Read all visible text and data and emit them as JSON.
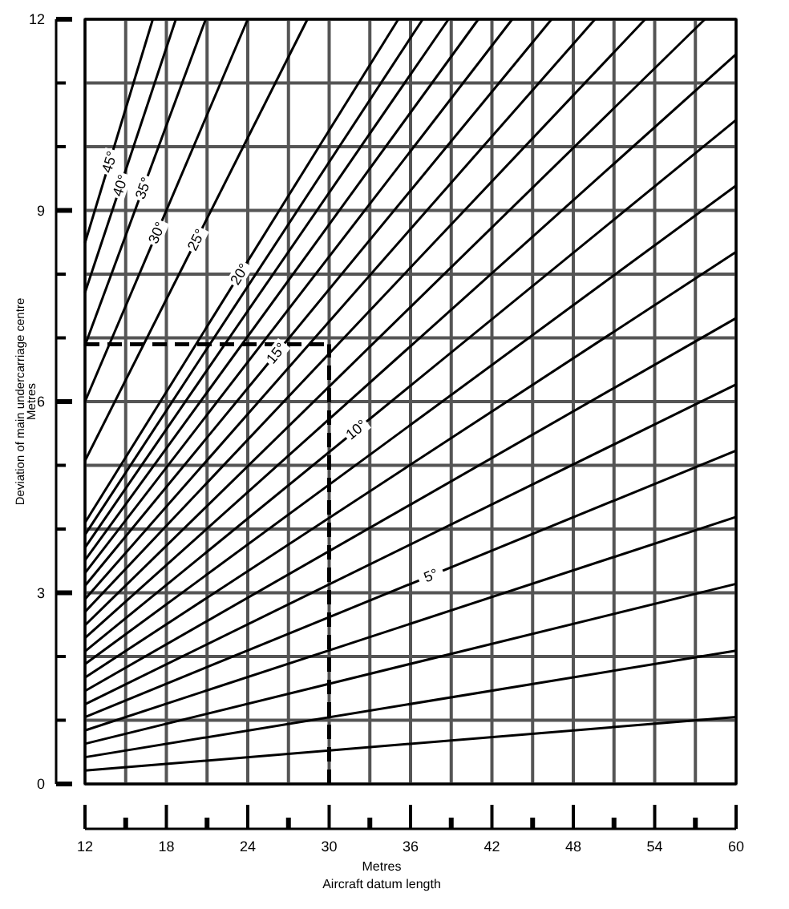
{
  "chart_data": {
    "type": "line",
    "xlabel": "Metres\nAircraft datum length",
    "ylabel": "Deviation of main undercarriage centre\nMetres",
    "xlim": [
      12,
      60
    ],
    "ylim": [
      0,
      12
    ],
    "xticks": [
      12,
      {
        "value": 15,
        "label": null
      },
      18,
      {
        "value": 21,
        "label": null
      },
      24,
      {
        "value": 27,
        "label": null
      },
      30,
      {
        "value": 33,
        "label": null
      },
      36,
      {
        "value": 39,
        "label": null
      },
      42,
      {
        "value": 45,
        "label": null
      },
      48,
      {
        "value": 51,
        "label": null
      },
      54,
      {
        "value": 57,
        "label": null
      },
      60
    ],
    "yticks": [
      0,
      {
        "value": 1,
        "label": null
      },
      {
        "value": 2,
        "label": null
      },
      3,
      {
        "value": 4,
        "label": null
      },
      {
        "value": 5,
        "label": null
      },
      6,
      {
        "value": 7,
        "label": null
      },
      {
        "value": 8,
        "label": null
      },
      9,
      {
        "value": 10,
        "label": null
      },
      {
        "value": 11,
        "label": null
      },
      12
    ],
    "grid": true,
    "marker": "none",
    "line_style": "solid",
    "series": [
      {
        "color": "#000000",
        "x": [
          12,
          60
        ],
        "values": [
          0.21,
          1.05
        ]
      },
      {
        "color": "#000000",
        "x": [
          12,
          60
        ],
        "values": [
          0.42,
          2.09
        ]
      },
      {
        "color": "#000000",
        "x": [
          12,
          60
        ],
        "values": [
          0.63,
          3.14
        ]
      },
      {
        "color": "#000000",
        "x": [
          12,
          60
        ],
        "values": [
          0.84,
          4.19
        ]
      },
      {
        "color": "#000000",
        "x": [
          12,
          60
        ],
        "values": [
          1.05,
          5.23
        ]
      },
      {
        "color": "#000000",
        "x": [
          12,
          60
        ],
        "values": [
          1.25,
          6.27
        ]
      },
      {
        "color": "#000000",
        "x": [
          12,
          60
        ],
        "values": [
          1.46,
          7.31
        ]
      },
      {
        "color": "#000000",
        "x": [
          12,
          60
        ],
        "values": [
          1.67,
          8.35
        ]
      },
      {
        "color": "#000000",
        "x": [
          12,
          60
        ],
        "values": [
          1.88,
          9.39
        ]
      },
      {
        "color": "#000000",
        "x": [
          12,
          60
        ],
        "values": [
          2.08,
          10.42
        ]
      },
      {
        "color": "#000000",
        "x": [
          12,
          60
        ],
        "values": [
          2.29,
          11.45
        ]
      },
      {
        "color": "#000000",
        "x": [
          12,
          57.7
        ],
        "values": [
          2.49,
          12
        ]
      },
      {
        "color": "#000000",
        "x": [
          12,
          53.3
        ],
        "values": [
          2.7,
          12
        ]
      },
      {
        "color": "#000000",
        "x": [
          12,
          49.6
        ],
        "values": [
          2.9,
          12
        ]
      },
      {
        "color": "#000000",
        "x": [
          12,
          46.4
        ],
        "values": [
          3.11,
          12
        ]
      },
      {
        "color": "#000000",
        "x": [
          12,
          43.5
        ],
        "values": [
          3.31,
          12
        ]
      },
      {
        "color": "#000000",
        "x": [
          12,
          41
        ],
        "values": [
          3.51,
          12
        ]
      },
      {
        "color": "#000000",
        "x": [
          12,
          38.8
        ],
        "values": [
          3.71,
          12
        ]
      },
      {
        "color": "#000000",
        "x": [
          12,
          36.9
        ],
        "values": [
          3.91,
          12
        ]
      },
      {
        "color": "#000000",
        "x": [
          12,
          35.1
        ],
        "values": [
          4.1,
          12
        ]
      },
      {
        "color": "#000000",
        "x": [
          12,
          28.4
        ],
        "values": [
          5.07,
          12
        ]
      },
      {
        "color": "#000000",
        "x": [
          12,
          24
        ],
        "values": [
          6,
          12
        ]
      },
      {
        "color": "#000000",
        "x": [
          12,
          20.9
        ],
        "values": [
          6.88,
          12
        ]
      },
      {
        "color": "#000000",
        "x": [
          12,
          18.7
        ],
        "values": [
          7.71,
          12
        ]
      },
      {
        "color": "#000000",
        "x": [
          12,
          17
        ],
        "values": [
          8.49,
          12
        ]
      }
    ],
    "annotations": [
      {
        "text": "45°",
        "x": 13.8,
        "y": 9.76
      },
      {
        "text": "40°",
        "x": 14.6,
        "y": 9.39
      },
      {
        "text": "35°",
        "x": 16.3,
        "y": 9.35
      },
      {
        "text": "30°",
        "x": 17.3,
        "y": 8.65
      },
      {
        "text": "25°",
        "x": 20.2,
        "y": 8.54
      },
      {
        "text": "20°",
        "x": 23.4,
        "y": 8.0
      },
      {
        "text": "15°",
        "x": 26.1,
        "y": 6.76
      },
      {
        "text": "10°",
        "x": 32,
        "y": 5.56
      },
      {
        "text": "5°",
        "x": 37.5,
        "y": 3.27
      }
    ],
    "ref_lines": [
      {
        "axis": "y",
        "value": 6.9,
        "line_style": "dashed",
        "color": "#000000"
      },
      {
        "axis": "x",
        "value": 30,
        "line_style": "dashed",
        "color": "#000000"
      }
    ]
  }
}
